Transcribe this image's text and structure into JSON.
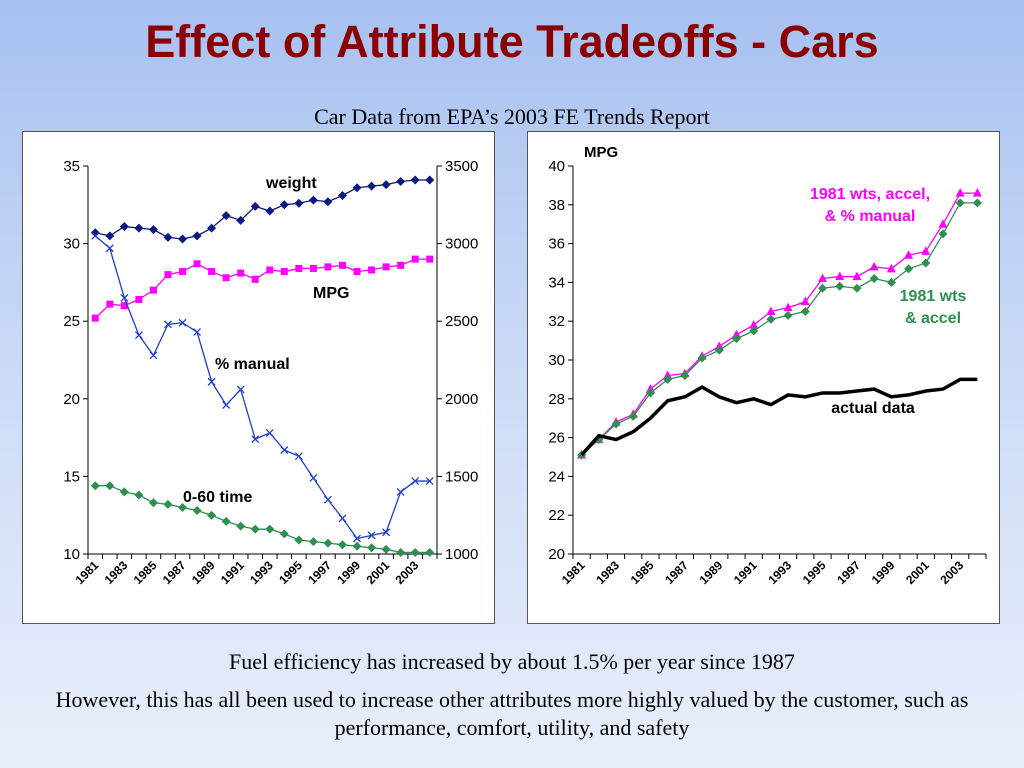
{
  "slide": {
    "title": "Effect of Attribute Tradeoffs - Cars",
    "subtitle": "Car Data from EPA’s 2003 FE Trends Report",
    "note_1": "Fuel efficiency has increased by about 1.5% per year since 1987",
    "note_2": "However, this has all been used to increase other attributes more highly valued by the customer, such as performance, comfort, utility, and safety"
  },
  "chart_data": [
    {
      "type": "line",
      "x": [
        1981,
        1982,
        1983,
        1984,
        1985,
        1986,
        1987,
        1988,
        1989,
        1990,
        1991,
        1992,
        1993,
        1994,
        1995,
        1996,
        1997,
        1998,
        1999,
        2000,
        2001,
        2002,
        2003,
        2004
      ],
      "x_tick_labels": [
        "1981",
        "1983",
        "1985",
        "1987",
        "1989",
        "1991",
        "1993",
        "1995",
        "1997",
        "1999",
        "2001",
        "2003"
      ],
      "y_left_range": [
        10,
        35
      ],
      "y_left_ticks": [
        "10",
        "15",
        "20",
        "25",
        "30",
        "35"
      ],
      "y_right_range": [
        1000,
        3500
      ],
      "y_right_ticks": [
        "1000",
        "1500",
        "2000",
        "2500",
        "3000",
        "3500"
      ],
      "grid": false,
      "series": [
        {
          "name": "weight",
          "axis": "right",
          "color": "#0a1a80",
          "marker": "diamond",
          "values": [
            3070,
            3050,
            3110,
            3100,
            3090,
            3040,
            3030,
            3050,
            3100,
            3180,
            3150,
            3240,
            3210,
            3250,
            3260,
            3280,
            3270,
            3310,
            3360,
            3370,
            3380,
            3400,
            3410,
            3410
          ]
        },
        {
          "name": "MPG",
          "axis": "left",
          "color": "#ff00ff",
          "marker": "square",
          "values": [
            25.2,
            26.1,
            26.0,
            26.4,
            27.0,
            28.0,
            28.2,
            28.7,
            28.2,
            27.8,
            28.1,
            27.7,
            28.3,
            28.2,
            28.4,
            28.4,
            28.5,
            28.6,
            28.2,
            28.3,
            28.5,
            28.6,
            29.0,
            29.0
          ]
        },
        {
          "name": "% manual",
          "axis": "left",
          "color": "#1f3fd0",
          "marker": "x",
          "values": [
            30.5,
            29.7,
            26.5,
            24.1,
            22.8,
            24.8,
            24.9,
            24.3,
            21.1,
            19.6,
            20.6,
            17.4,
            17.8,
            16.7,
            16.3,
            14.9,
            13.5,
            12.3,
            11.0,
            11.2,
            11.4,
            14.0,
            14.7,
            14.7
          ]
        },
        {
          "name": "0-60 time",
          "axis": "left",
          "color": "#2f8f4f",
          "marker": "diamond",
          "values": [
            14.4,
            14.4,
            14.0,
            13.8,
            13.3,
            13.2,
            13.0,
            12.8,
            12.5,
            12.1,
            11.8,
            11.6,
            11.6,
            11.3,
            10.9,
            10.8,
            10.7,
            10.6,
            10.5,
            10.4,
            10.3,
            10.1,
            10.1,
            10.1
          ]
        }
      ]
    },
    {
      "type": "line",
      "ylabel": "MPG",
      "x": [
        1981,
        1982,
        1983,
        1984,
        1985,
        1986,
        1987,
        1988,
        1989,
        1990,
        1991,
        1992,
        1993,
        1994,
        1995,
        1996,
        1997,
        1998,
        1999,
        2000,
        2001,
        2002,
        2003,
        2004
      ],
      "x_tick_labels": [
        "1981",
        "1983",
        "1985",
        "1987",
        "1989",
        "1991",
        "1993",
        "1995",
        "1997",
        "1999",
        "2001",
        "2003"
      ],
      "ylim": [
        20,
        40
      ],
      "y_ticks": [
        "20",
        "22",
        "24",
        "26",
        "28",
        "30",
        "32",
        "34",
        "36",
        "38",
        "40"
      ],
      "grid": false,
      "series": [
        {
          "name": "1981 wts, accel, & % manual",
          "color": "#ff00ff",
          "marker": "triangle",
          "values": [
            25.1,
            25.9,
            26.8,
            27.2,
            28.5,
            29.2,
            29.3,
            30.2,
            30.7,
            31.3,
            31.8,
            32.5,
            32.7,
            33.0,
            34.2,
            34.3,
            34.3,
            34.8,
            34.7,
            35.4,
            35.6,
            37.0,
            38.6,
            38.6
          ]
        },
        {
          "name": "1981 wts & accel",
          "color": "#2f8f4f",
          "marker": "diamond",
          "values": [
            25.1,
            25.9,
            26.7,
            27.1,
            28.3,
            29.0,
            29.2,
            30.1,
            30.5,
            31.1,
            31.5,
            32.1,
            32.3,
            32.5,
            33.7,
            33.8,
            33.7,
            34.2,
            34.0,
            34.7,
            35.0,
            36.5,
            38.1,
            38.1
          ]
        },
        {
          "name": "actual data",
          "color": "#000000",
          "marker": "none",
          "values": [
            25.1,
            26.1,
            25.9,
            26.3,
            27.0,
            27.9,
            28.1,
            28.6,
            28.1,
            27.8,
            28.0,
            27.7,
            28.2,
            28.1,
            28.3,
            28.3,
            28.4,
            28.5,
            28.1,
            28.2,
            28.4,
            28.5,
            29.0,
            29.0
          ]
        }
      ]
    }
  ]
}
